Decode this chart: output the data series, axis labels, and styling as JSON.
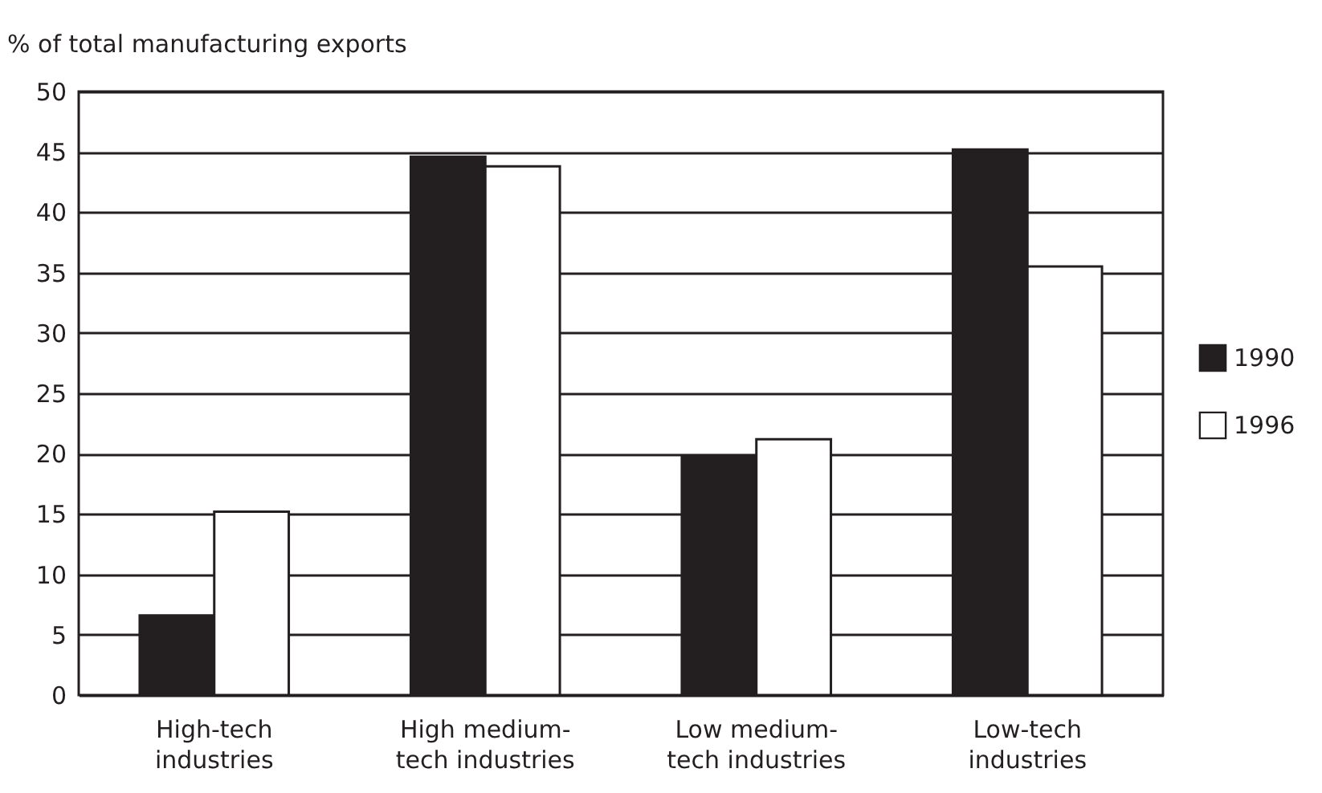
{
  "chart_data": {
    "type": "bar",
    "ylabel": "% of total manufacturing exports",
    "categories": [
      "High-tech industries",
      "High medium-tech industries",
      "Low medium-tech industries",
      "Low-tech industries"
    ],
    "series": [
      {
        "name": "1990",
        "color": "#231f20",
        "values": [
          6.6,
          44.6,
          19.8,
          45.2
        ]
      },
      {
        "name": "1996",
        "color": "#ffffff",
        "values": [
          15.2,
          43.8,
          21.2,
          35.5
        ]
      }
    ],
    "ylim": [
      0,
      50
    ],
    "yticks": [
      0,
      5,
      10,
      15,
      20,
      25,
      30,
      35,
      40,
      45,
      50
    ],
    "grid": "y",
    "legend": "right"
  }
}
